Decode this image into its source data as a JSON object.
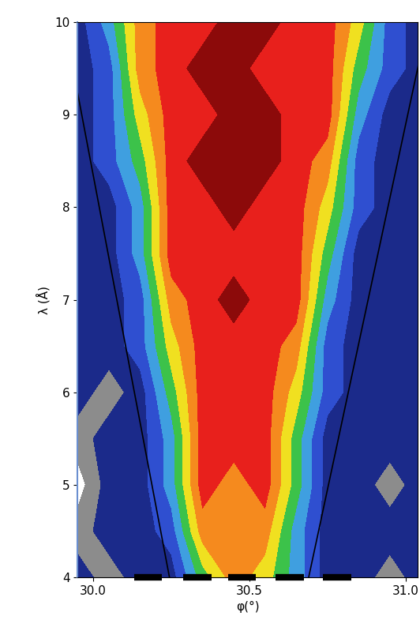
{
  "chart_data": {
    "type": "heatmap",
    "x_label": "φ(°)",
    "y_label": "λ (Å)",
    "xlim": [
      29.95,
      31.04
    ],
    "xticks": [
      30.0,
      30.5,
      31.0
    ],
    "ylim": [
      4,
      10
    ],
    "yticks": [
      4,
      5,
      6,
      7,
      8,
      9,
      10
    ],
    "x": [
      29.95,
      30.05,
      30.15,
      30.25,
      30.35,
      30.45,
      30.55,
      30.65,
      30.75,
      30.85,
      30.95,
      31.05
    ],
    "y": [
      4.0,
      4.5,
      5.0,
      5.5,
      6.0,
      6.5,
      7.0,
      7.5,
      8.0,
      8.5,
      9.0,
      9.5,
      10.0
    ],
    "cells": [
      [
        2,
        1,
        2,
        2,
        5,
        7,
        6,
        4,
        2,
        2,
        1,
        2
      ],
      [
        1,
        2,
        2,
        3,
        7,
        7,
        7,
        4,
        2,
        2,
        2,
        2
      ],
      [
        0,
        2,
        2,
        4,
        8,
        7,
        8,
        5,
        2,
        2,
        1,
        2
      ],
      [
        1,
        2,
        2,
        4,
        8,
        8,
        8,
        5,
        2,
        2,
        2,
        2
      ],
      [
        2,
        1,
        2,
        5,
        8,
        8,
        8,
        6,
        3,
        2,
        2,
        2
      ],
      [
        2,
        2,
        3,
        6,
        8,
        8,
        8,
        7,
        3,
        2,
        2,
        2
      ],
      [
        2,
        2,
        3,
        7,
        8,
        9,
        8,
        8,
        4,
        2,
        2,
        2
      ],
      [
        2,
        2,
        4,
        8,
        8,
        8,
        8,
        8,
        5,
        2,
        2,
        2
      ],
      [
        2,
        2,
        4,
        8,
        8,
        9,
        8,
        8,
        6,
        3,
        2,
        2
      ],
      [
        2,
        3,
        5,
        8,
        9,
        9,
        9,
        8,
        7,
        3,
        2,
        2
      ],
      [
        2,
        3,
        6,
        8,
        8,
        9,
        9,
        8,
        8,
        4,
        2,
        2
      ],
      [
        2,
        3,
        7,
        8,
        9,
        9,
        8,
        8,
        8,
        5,
        3,
        2
      ],
      [
        2,
        4,
        7,
        8,
        8,
        9,
        9,
        8,
        8,
        6,
        3,
        2
      ]
    ],
    "levels": [
      -0.5,
      0.5,
      1.5,
      2.5,
      3.5,
      4.5,
      5.5,
      6.5,
      7.5,
      8.5,
      9.5
    ],
    "colors": [
      "#ffffff",
      "#8c8c8c",
      "#1b2a8a",
      "#2f4fd0",
      "#3f9fe0",
      "#3cc24a",
      "#f0e020",
      "#f58a1e",
      "#e8201c",
      "#8c0a0a"
    ],
    "lines": [
      [
        [
          29.95,
          9.23
        ],
        [
          30.244,
          4.0
        ]
      ],
      [
        [
          30.69,
          4.0
        ],
        [
          31.043,
          9.56
        ]
      ]
    ],
    "bars": [
      [
        30.131,
        30.219
      ],
      [
        30.287,
        30.378
      ],
      [
        30.433,
        30.521
      ],
      [
        30.584,
        30.675
      ],
      [
        30.736,
        30.826
      ]
    ]
  }
}
